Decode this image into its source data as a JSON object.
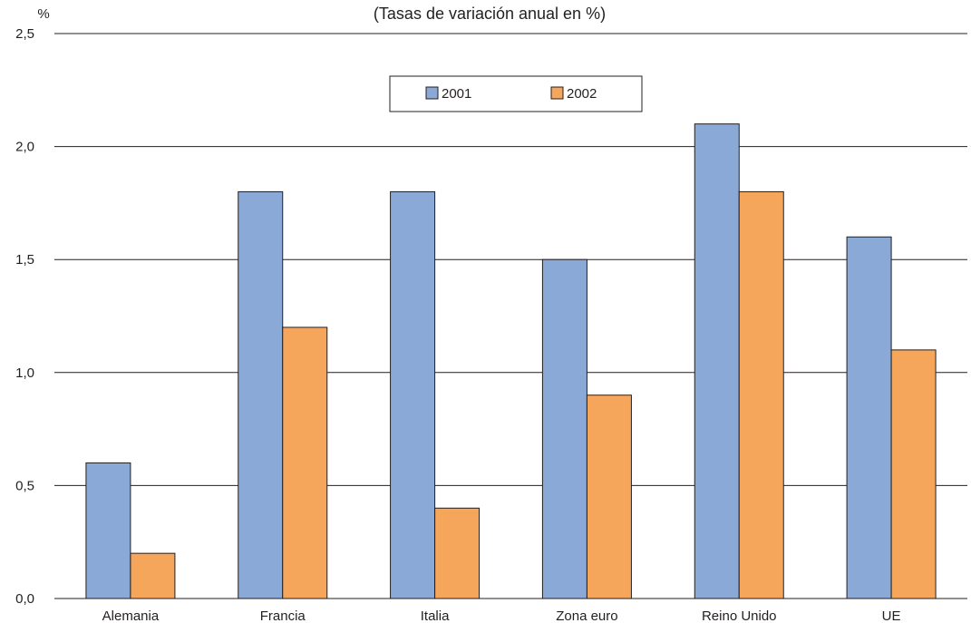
{
  "chart_data": {
    "type": "bar",
    "title": "",
    "subtitle": "(Tasas de variación anual en %)",
    "ylabel": "%",
    "xlabel": "",
    "ylim": [
      0,
      2.5
    ],
    "yticks": [
      "0,0",
      "0,5",
      "1,0",
      "1,5",
      "2,0",
      "2,5"
    ],
    "categories": [
      "Alemania",
      "Francia",
      "Italia",
      "Zona euro",
      "Reino Unido",
      "UE"
    ],
    "series": [
      {
        "name": "2001",
        "color": "#8aa9d6",
        "values": [
          0.6,
          1.8,
          1.8,
          1.5,
          2.1,
          1.6
        ]
      },
      {
        "name": "2002",
        "color": "#f6a65a",
        "values": [
          0.2,
          1.2,
          0.4,
          0.9,
          1.8,
          1.1
        ]
      }
    ],
    "grid": true,
    "legend_position": "top-center"
  }
}
